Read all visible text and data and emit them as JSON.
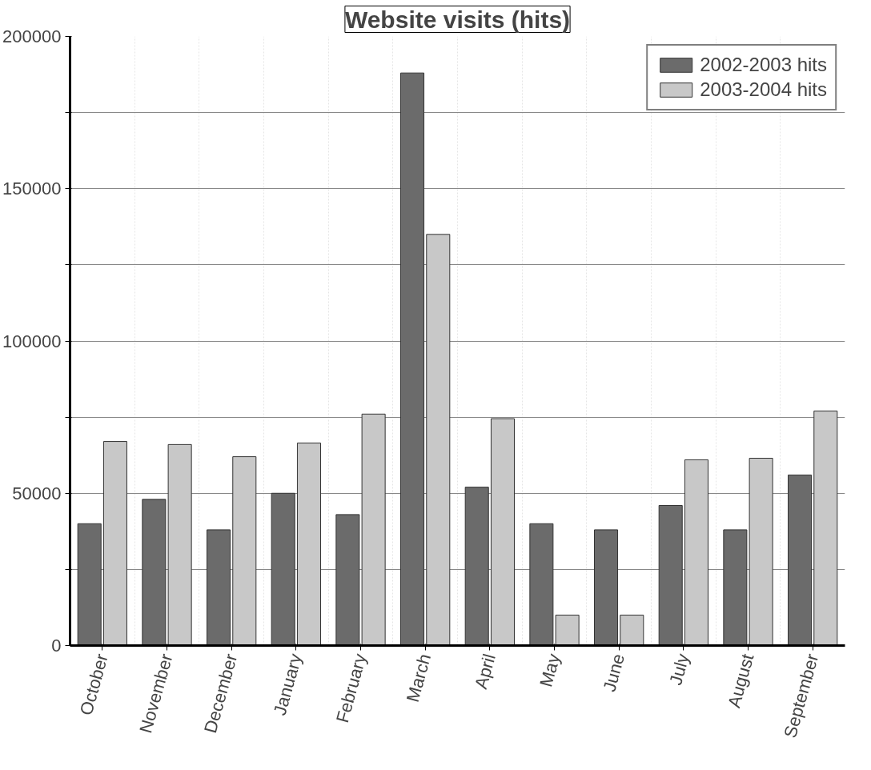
{
  "chart_data": {
    "type": "bar",
    "title": "Website visits (hits)",
    "categories": [
      "October",
      "November",
      "December",
      "January",
      "February",
      "March",
      "April",
      "May",
      "June",
      "July",
      "August",
      "September"
    ],
    "series": [
      {
        "name": "2002-2003 hits",
        "color": "#6b6b6b",
        "values": [
          40000,
          48000,
          38000,
          50000,
          43000,
          188000,
          52000,
          40000,
          38000,
          46000,
          38000,
          56000
        ]
      },
      {
        "name": "2003-2004 hits",
        "color": "#c8c8c8",
        "values": [
          67000,
          66000,
          62000,
          66500,
          76000,
          135000,
          74500,
          10000,
          10000,
          61000,
          61500,
          77000
        ]
      }
    ],
    "ylim": [
      0,
      200000
    ],
    "yticks": [
      0,
      {
        "value": 25000,
        "label": null
      },
      50000,
      {
        "value": 75000,
        "label": null
      },
      100000,
      {
        "value": 125000,
        "label": null
      },
      150000,
      {
        "value": 175000,
        "label": null
      },
      200000
    ],
    "grid": true,
    "legend": "top right"
  }
}
